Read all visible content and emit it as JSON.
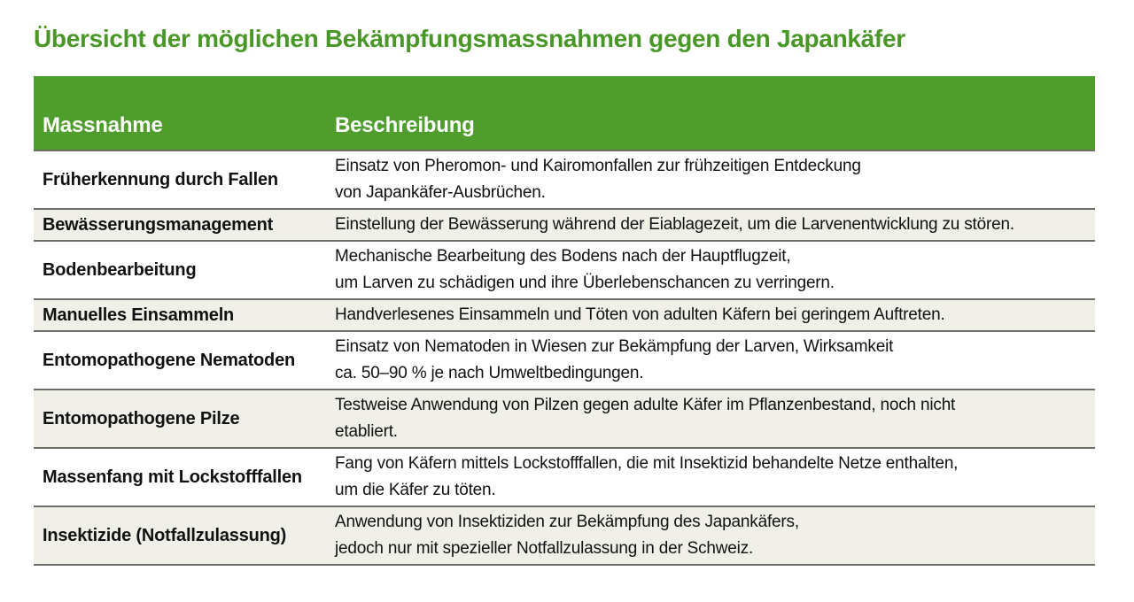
{
  "page": {
    "title": "Übersicht der möglichen Bekämpfungsmassnahmen gegen den Japankäfer"
  },
  "table": {
    "columns": [
      "Massnahme",
      "Beschreibung"
    ],
    "rows": [
      {
        "massnahme": "Früherkennung durch Fallen",
        "beschreibung": "Einsatz von Pheromon- und Kairomonfallen zur frühzeitigen Entdeckung\nvon Japankäfer-Ausbrüchen."
      },
      {
        "massnahme": "Bewässerungsmanagement",
        "beschreibung": "Einstellung der Bewässerung während der Eiablagezeit, um die Larvenentwicklung zu stören."
      },
      {
        "massnahme": "Bodenbearbeitung",
        "beschreibung": "Mechanische Bearbeitung des Bodens nach der Hauptflugzeit,\num Larven zu schädigen und ihre Überlebenschancen zu verringern."
      },
      {
        "massnahme": "Manuelles Einsammeln",
        "beschreibung": "Handverlesenes Einsammeln und Töten von adulten Käfern bei geringem Auftreten."
      },
      {
        "massnahme": "Entomopathogene Nematoden",
        "beschreibung": "Einsatz von Nematoden in Wiesen zur Bekämpfung der Larven, Wirksamkeit\nca. 50–90 % je nach Umweltbedingungen."
      },
      {
        "massnahme": "Entomopathogene Pilze",
        "beschreibung": "Testweise Anwendung von Pilzen gegen adulte Käfer im Pflanzenbestand, noch nicht\netabliert."
      },
      {
        "massnahme": "Massenfang mit Lockstofffallen",
        "beschreibung": "Fang von Käfern mittels Lockstofffallen, die mit Insektizid behandelte Netze enthalten,\num die Käfer zu töten."
      },
      {
        "massnahme": "Insektizide (Notfallzulassung)",
        "beschreibung": "Anwendung von Insektiziden zur Bekämpfung des Japankäfers,\njedoch nur mit spezieller Notfallzulassung in der Schweiz."
      }
    ]
  },
  "colors": {
    "title_green": "#489727",
    "header_bg": "#4f9d2d",
    "header_text": "#ffffff",
    "row_alt_bg": "#f0efe8",
    "divider": "#6e6e6a",
    "body_text": "#111111"
  }
}
